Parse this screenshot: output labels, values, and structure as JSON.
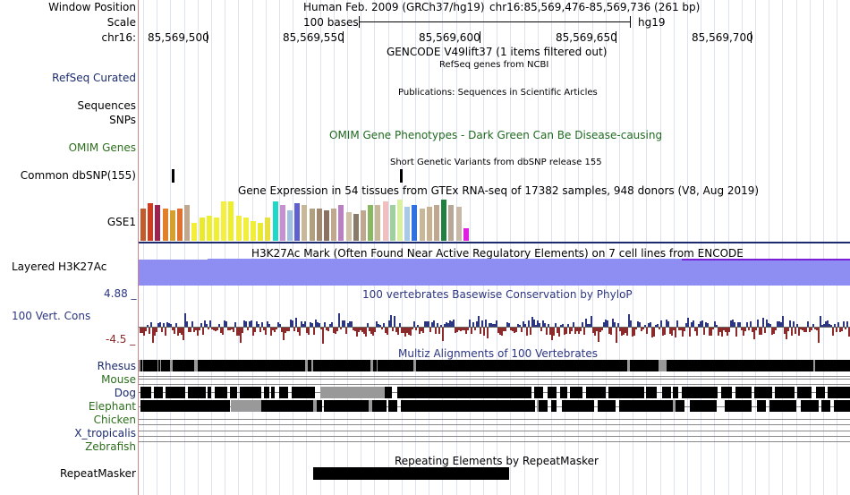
{
  "labels": {
    "window_position": "Window Position",
    "scale": "Scale",
    "chrom": "chr16:",
    "refseq": "RefSeq Curated",
    "sequences": "Sequences",
    "snps": "SNPs",
    "omim": "OMIM Genes",
    "dbsnp": "Common dbSNP(155)",
    "gse1": "GSE1",
    "h3k27ac": "Layered H3K27Ac",
    "cons": "100 Vert. Cons",
    "cons_max": "4.88 _",
    "cons_min": "-4.5 _",
    "rhesus": "Rhesus",
    "mouse": "Mouse",
    "dog": "Dog",
    "elephant": "Elephant",
    "chicken": "Chicken",
    "xtrop": "X_tropicalis",
    "zebrafish": "Zebrafish",
    "repeatmasker": "RepeatMasker"
  },
  "header": {
    "assembly": "Human Feb. 2009 (GRCh37/hg19)",
    "position": "chr16:85,569,476-85,569,736 (261 bp)",
    "scale_text": "100 bases",
    "scale_db": "hg19",
    "ticks": [
      "85,569,500",
      "85,569,550",
      "85,569,600",
      "85,569,650",
      "85,569,700"
    ]
  },
  "titles": {
    "gencode": "GENCODE V49lift37 (1 items filtered out)",
    "refseq": "RefSeq genes from NCBI",
    "publications": "Publications: Sequences in Scientific Articles",
    "omim": "OMIM Gene Phenotypes - Dark Green Can Be Disease-causing",
    "dbsnp": "Short Genetic Variants from dbSNP release 155",
    "gtex": "Gene Expression in 54 tissues from GTEx RNA-seq of 17382 samples, 948 donors (V8, Aug 2019)",
    "h3k27ac": "H3K27Ac Mark (Often Found Near Active Regulatory Elements) on 7 cell lines from ENCODE",
    "phylop": "100 vertebrates Basewise Conservation by PhyloP",
    "multiz": "Multiz Alignments of 100 Vertebrates",
    "repeatmasker": "Repeating Elements by RepeatMasker"
  },
  "colors": {
    "label_blue": "#1c2b6e",
    "label_green": "#2c6e1c",
    "omim_green": "#1f6a1f",
    "cons_blue": "#2c3580",
    "cons_red": "#8a2a2a",
    "h3k_fill": "#8d8df2",
    "h3k_line": "#7a1fd6"
  },
  "gtex_bars": [
    {
      "c": "#c55a2a",
      "h": 36
    },
    {
      "c": "#d43a1c",
      "h": 42
    },
    {
      "c": "#a02050",
      "h": 40
    },
    {
      "c": "#e0802a",
      "h": 36
    },
    {
      "c": "#d6a030",
      "h": 34
    },
    {
      "c": "#e07030",
      "h": 36
    },
    {
      "c": "#c0a890",
      "h": 40
    },
    {
      "c": "#f4ee3a",
      "h": 20
    },
    {
      "c": "#eaea2a",
      "h": 26
    },
    {
      "c": "#eeee30",
      "h": 28
    },
    {
      "c": "#f0f030",
      "h": 26
    },
    {
      "c": "#f5f040",
      "h": 44
    },
    {
      "c": "#eeee2a",
      "h": 44
    },
    {
      "c": "#f0ec40",
      "h": 28
    },
    {
      "c": "#f2ee40",
      "h": 26
    },
    {
      "c": "#f0ee3a",
      "h": 22
    },
    {
      "c": "#eaea30",
      "h": 20
    },
    {
      "c": "#e8e040",
      "h": 26
    },
    {
      "c": "#20d8c8",
      "h": 44
    },
    {
      "c": "#c890d0",
      "h": 40
    },
    {
      "c": "#a0c0e0",
      "h": 34
    },
    {
      "c": "#6060d0",
      "h": 42
    },
    {
      "c": "#c8b898",
      "h": 40
    },
    {
      "c": "#b0a080",
      "h": 36
    },
    {
      "c": "#a08870",
      "h": 36
    },
    {
      "c": "#8a7060",
      "h": 34
    },
    {
      "c": "#c0a890",
      "h": 36
    },
    {
      "c": "#b880c0",
      "h": 40
    },
    {
      "c": "#d0c0a8",
      "h": 32
    },
    {
      "c": "#8a7a6a",
      "h": 30
    },
    {
      "c": "#c0a890",
      "h": 34
    },
    {
      "c": "#88b860",
      "h": 40
    },
    {
      "c": "#c8b898",
      "h": 40
    },
    {
      "c": "#f0c0c0",
      "h": 44
    },
    {
      "c": "#a0d0a0",
      "h": 40
    },
    {
      "c": "#d8f0a0",
      "h": 46
    },
    {
      "c": "#a8c8e8",
      "h": 38
    },
    {
      "c": "#3070e0",
      "h": 40
    },
    {
      "c": "#c8b898",
      "h": 36
    },
    {
      "c": "#c8b090",
      "h": 38
    },
    {
      "c": "#c0a890",
      "h": 40
    },
    {
      "c": "#208040",
      "h": 46
    },
    {
      "c": "#b8a898",
      "h": 40
    },
    {
      "c": "#c8b8a8",
      "h": 38
    },
    {
      "c": "#e020e0",
      "h": 14
    }
  ],
  "multiz": {
    "rhesus": [
      [
        157,
        2
      ],
      [
        160,
        16
      ],
      [
        177,
        2
      ],
      [
        180,
        10
      ],
      [
        193,
        24
      ],
      [
        221,
        120
      ],
      [
        344,
        4
      ],
      [
        350,
        64
      ],
      [
        417,
        4
      ],
      [
        422,
        40
      ],
      [
        465,
        236
      ],
      [
        704,
        32
      ],
      [
        745,
        164
      ],
      [
        911,
        39
      ]
    ],
    "dog": [
      [
        157,
        12
      ],
      [
        172,
        10
      ],
      [
        185,
        22
      ],
      [
        210,
        20
      ],
      [
        232,
        4
      ],
      [
        240,
        14
      ],
      [
        257,
        8
      ],
      [
        268,
        24
      ],
      [
        295,
        6
      ],
      [
        303,
        4
      ],
      [
        312,
        10
      ],
      [
        326,
        26
      ],
      [
        430,
        8
      ],
      [
        444,
        150
      ],
      [
        597,
        10
      ],
      [
        612,
        10
      ],
      [
        626,
        8
      ],
      [
        637,
        14
      ],
      [
        655,
        22
      ],
      [
        680,
        40
      ],
      [
        722,
        12
      ],
      [
        740,
        10
      ],
      [
        752,
        6
      ],
      [
        762,
        40
      ],
      [
        806,
        12
      ],
      [
        822,
        18
      ],
      [
        843,
        20
      ],
      [
        866,
        22
      ],
      [
        891,
        16
      ],
      [
        912,
        10
      ],
      [
        925,
        25
      ]
    ],
    "dog_grey": [
      [
        358,
        72
      ]
    ],
    "elephant": [
      [
        157,
        100
      ],
      [
        292,
        58
      ],
      [
        354,
        6
      ],
      [
        362,
        50
      ],
      [
        416,
        16
      ],
      [
        434,
        10
      ],
      [
        448,
        150
      ],
      [
        602,
        10
      ],
      [
        616,
        6
      ],
      [
        628,
        36
      ],
      [
        668,
        20
      ],
      [
        692,
        60
      ],
      [
        755,
        10
      ],
      [
        771,
        30
      ],
      [
        810,
        30
      ],
      [
        846,
        10
      ],
      [
        860,
        30
      ],
      [
        895,
        20
      ],
      [
        918,
        10
      ],
      [
        932,
        18
      ]
    ],
    "elephant_grey": [
      [
        258,
        34
      ],
      [
        350,
        4
      ],
      [
        412,
        4
      ],
      [
        600,
        2
      ],
      [
        752,
        3
      ]
    ]
  },
  "repeat_block": {
    "x": 350,
    "w": 219
  }
}
